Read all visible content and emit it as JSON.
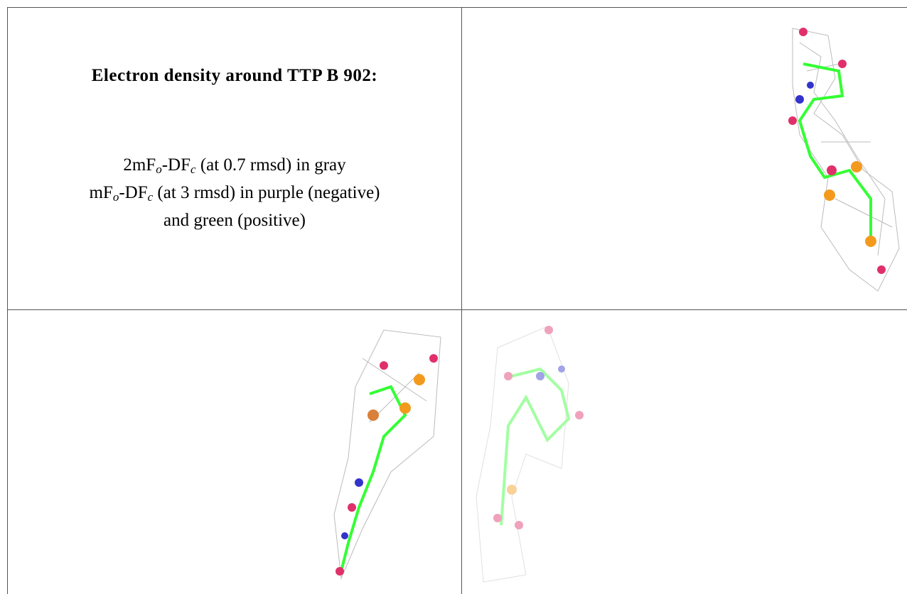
{
  "caption": {
    "title": "Electron density around TTP B 902:",
    "lines": [
      [
        {
          "t": "2mF"
        },
        {
          "s": "o"
        },
        {
          "t": "-DF"
        },
        {
          "s": "c"
        },
        {
          "t": " (at 0.7 rmsd) in gray"
        }
      ],
      [
        {
          "t": "mF"
        },
        {
          "s": "o"
        },
        {
          "t": "-DF"
        },
        {
          "s": "c"
        },
        {
          "t": " (at 3 rmsd) in purple (negative)"
        }
      ],
      [
        {
          "t": "and green (positive)"
        }
      ]
    ]
  }
}
